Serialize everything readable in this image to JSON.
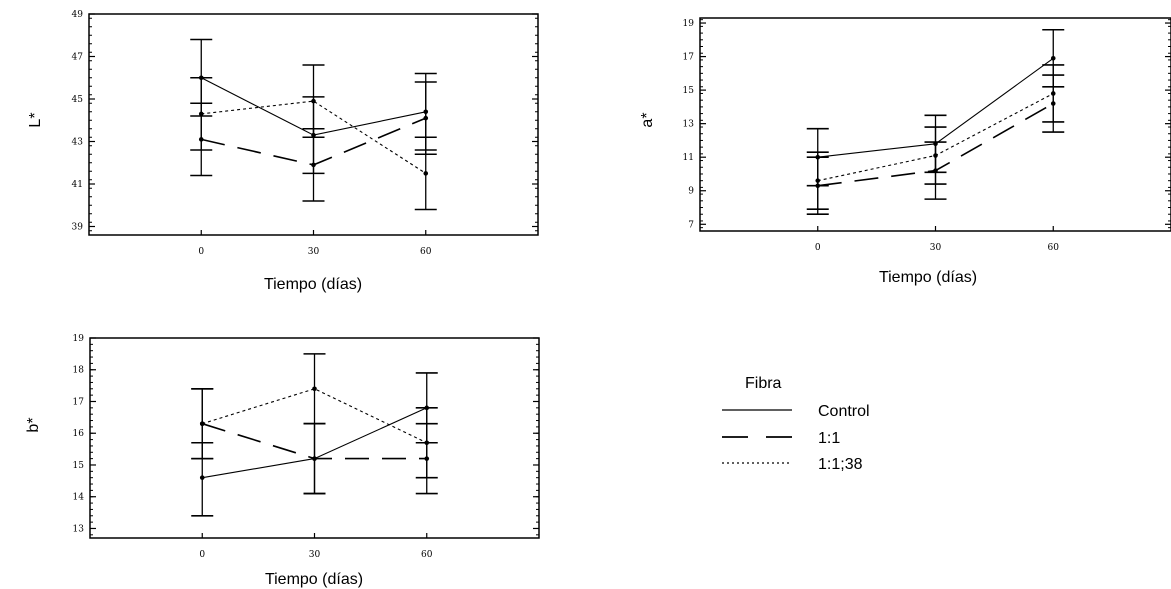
{
  "chart_data": [
    {
      "type": "line",
      "ylabel": "L*",
      "xlabel": "Tiempo (días)",
      "x": [
        0,
        30,
        60
      ],
      "x_tick_labels": [
        "0",
        "30",
        "60"
      ],
      "xlim": [
        -30,
        90
      ],
      "ylim": [
        38.6,
        49
      ],
      "y_ticks": [
        39,
        41,
        43,
        45,
        47,
        49
      ],
      "series": [
        {
          "name": "Control",
          "values": [
            46.0,
            43.3,
            44.4
          ],
          "lower": [
            44.2,
            41.5,
            42.6
          ],
          "upper": [
            47.8,
            45.1,
            46.2
          ]
        },
        {
          "name": "1:1",
          "values": [
            43.1,
            41.9,
            44.1
          ],
          "lower": [
            41.4,
            40.2,
            42.4
          ],
          "upper": [
            44.8,
            43.6,
            45.8
          ]
        },
        {
          "name": "1:1;38",
          "values": [
            44.3,
            44.9,
            41.5
          ],
          "lower": [
            42.6,
            43.2,
            39.8
          ],
          "upper": [
            46.0,
            46.6,
            43.2
          ]
        }
      ]
    },
    {
      "type": "line",
      "ylabel": "a*",
      "xlabel": "Tiempo (días)",
      "x": [
        0,
        30,
        60
      ],
      "x_tick_labels": [
        "0",
        "30",
        "60"
      ],
      "xlim": [
        -30,
        90
      ],
      "ylim": [
        6.6,
        19.3
      ],
      "y_ticks": [
        7,
        9,
        11,
        13,
        15,
        17,
        19
      ],
      "series": [
        {
          "name": "Control",
          "values": [
            11.0,
            11.8,
            16.9
          ],
          "lower": [
            9.3,
            10.1,
            15.2
          ],
          "upper": [
            12.7,
            13.5,
            18.6
          ]
        },
        {
          "name": "1:1",
          "values": [
            9.3,
            10.2,
            14.2
          ],
          "lower": [
            7.6,
            8.5,
            12.5
          ],
          "upper": [
            11.0,
            11.9,
            15.9
          ]
        },
        {
          "name": "1:1;38",
          "values": [
            9.6,
            11.1,
            14.8
          ],
          "lower": [
            7.9,
            9.4,
            13.1
          ],
          "upper": [
            11.3,
            12.8,
            16.5
          ]
        }
      ]
    },
    {
      "type": "line",
      "ylabel": "b*",
      "xlabel": "Tiempo (días)",
      "x": [
        0,
        30,
        60
      ],
      "x_tick_labels": [
        "0",
        "30",
        "60"
      ],
      "xlim": [
        -30,
        90
      ],
      "ylim": [
        12.7,
        19
      ],
      "y_ticks": [
        13,
        14,
        15,
        16,
        17,
        18,
        19
      ],
      "series": [
        {
          "name": "Control",
          "values": [
            14.6,
            15.2,
            16.8
          ],
          "lower": [
            13.4,
            14.1,
            15.7
          ],
          "upper": [
            15.7,
            16.3,
            17.9
          ]
        },
        {
          "name": "1:1",
          "values": [
            16.3,
            15.2,
            15.2
          ],
          "lower": [
            15.2,
            14.1,
            14.1
          ],
          "upper": [
            17.4,
            16.3,
            16.3
          ]
        },
        {
          "name": "1:1;38",
          "values": [
            16.3,
            17.4,
            15.7
          ],
          "lower": [
            15.2,
            16.3,
            14.6
          ],
          "upper": [
            17.4,
            18.5,
            16.8
          ]
        }
      ]
    }
  ],
  "legend": {
    "title": "Fibra",
    "items": [
      {
        "label": "Control",
        "style": "solid"
      },
      {
        "label": "1:1",
        "style": "long-dash"
      },
      {
        "label": "1:1;38",
        "style": "dotted"
      }
    ]
  }
}
